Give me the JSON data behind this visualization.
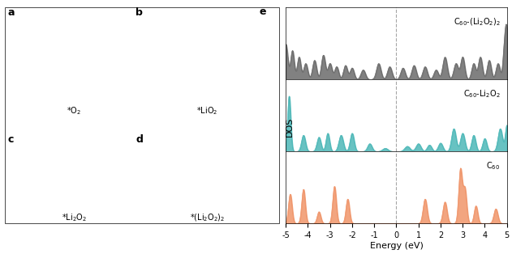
{
  "energy_range": [
    -5,
    5
  ],
  "dashed_line_x": 0,
  "panel_labels": [
    "e"
  ],
  "colors": {
    "c60_li2o2_2": "#6b6b6b",
    "c60_li2o2": "#4db8b8",
    "c60": "#f0956a"
  },
  "label_c60_li2o2_2": "C$_{60}$-(Li$_2$O$_2$)$_2$",
  "label_c60_li2o2": "C$_{60}$-Li$_2$O$_2$",
  "label_c60": "C$_{60}$",
  "xlabel": "Energy (eV)",
  "ylabel": "DOS",
  "tick_labels": [
    "-5",
    "-4",
    "-3",
    "-2",
    "-1",
    "0",
    "1",
    "2",
    "3",
    "4",
    "5"
  ],
  "tick_values": [
    -5,
    -4,
    -3,
    -2,
    -1,
    0,
    1,
    2,
    3,
    4,
    5
  ]
}
